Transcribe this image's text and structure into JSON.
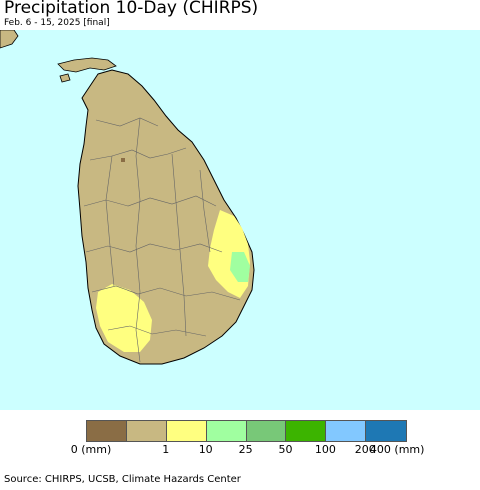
{
  "title": "Precipitation 10-Day (CHIRPS)",
  "subtitle": "Feb. 6 - 15, 2025 [final]",
  "map": {
    "ocean_color": "#ccffff",
    "land_color": "#c8b882",
    "border_color": "#666666",
    "coast_color": "#000000"
  },
  "legend": {
    "colors": [
      "#8a6d45",
      "#c8b882",
      "#ffff80",
      "#a0ffa0",
      "#78c878",
      "#3cb400",
      "#82c8ff",
      "#1e78b4"
    ],
    "labels": [
      "0 (mm)",
      "1",
      "10",
      "25",
      "50",
      "100",
      "200",
      "400 (mm)"
    ]
  },
  "source": "Source: CHIRPS, UCSB, Climate Hazards Center"
}
